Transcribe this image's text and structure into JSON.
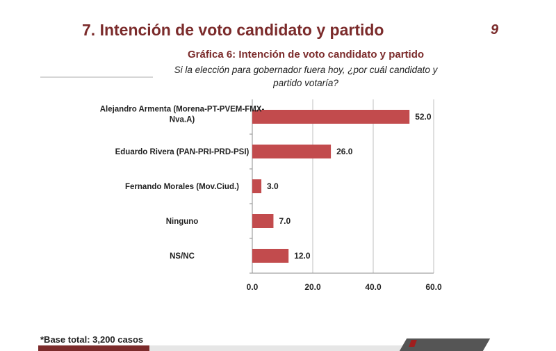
{
  "slide": {
    "title": "7. Intención de voto candidato y partido",
    "page_number": "9",
    "footnote": "*Base total: 3,200 casos"
  },
  "colors": {
    "title": "#7b2b2b",
    "bar": "#c24b4d",
    "grid": "#bfbfbf",
    "text": "#222222"
  },
  "chart_data": {
    "type": "bar",
    "orientation": "horizontal",
    "title": "Gráfica 6: Intención de voto candidato  y partido",
    "subtitle": "Si  la elección para gobernador fuera hoy, ¿por cuál candidato y partido votaría?",
    "categories": [
      [
        "Alejandro Armenta (Morena-PT-PVEM-FMX-",
        "Nva.A)"
      ],
      [
        "Eduardo Rivera (PAN-PRI-PRD-PSI)"
      ],
      [
        "Fernando Morales (Mov.Ciud.)"
      ],
      [
        "Ninguno"
      ],
      [
        "NS/NC"
      ]
    ],
    "values": [
      52.0,
      26.0,
      3.0,
      7.0,
      12.0
    ],
    "value_labels": [
      "52.0",
      "26.0",
      "3.0",
      "7.0",
      "12.0"
    ],
    "xlim": [
      0,
      60
    ],
    "ticks": [
      0,
      20,
      40,
      60
    ],
    "tick_labels": [
      "0.0",
      "20.0",
      "40.0",
      "60.0"
    ],
    "grid": true,
    "legend": "none"
  }
}
